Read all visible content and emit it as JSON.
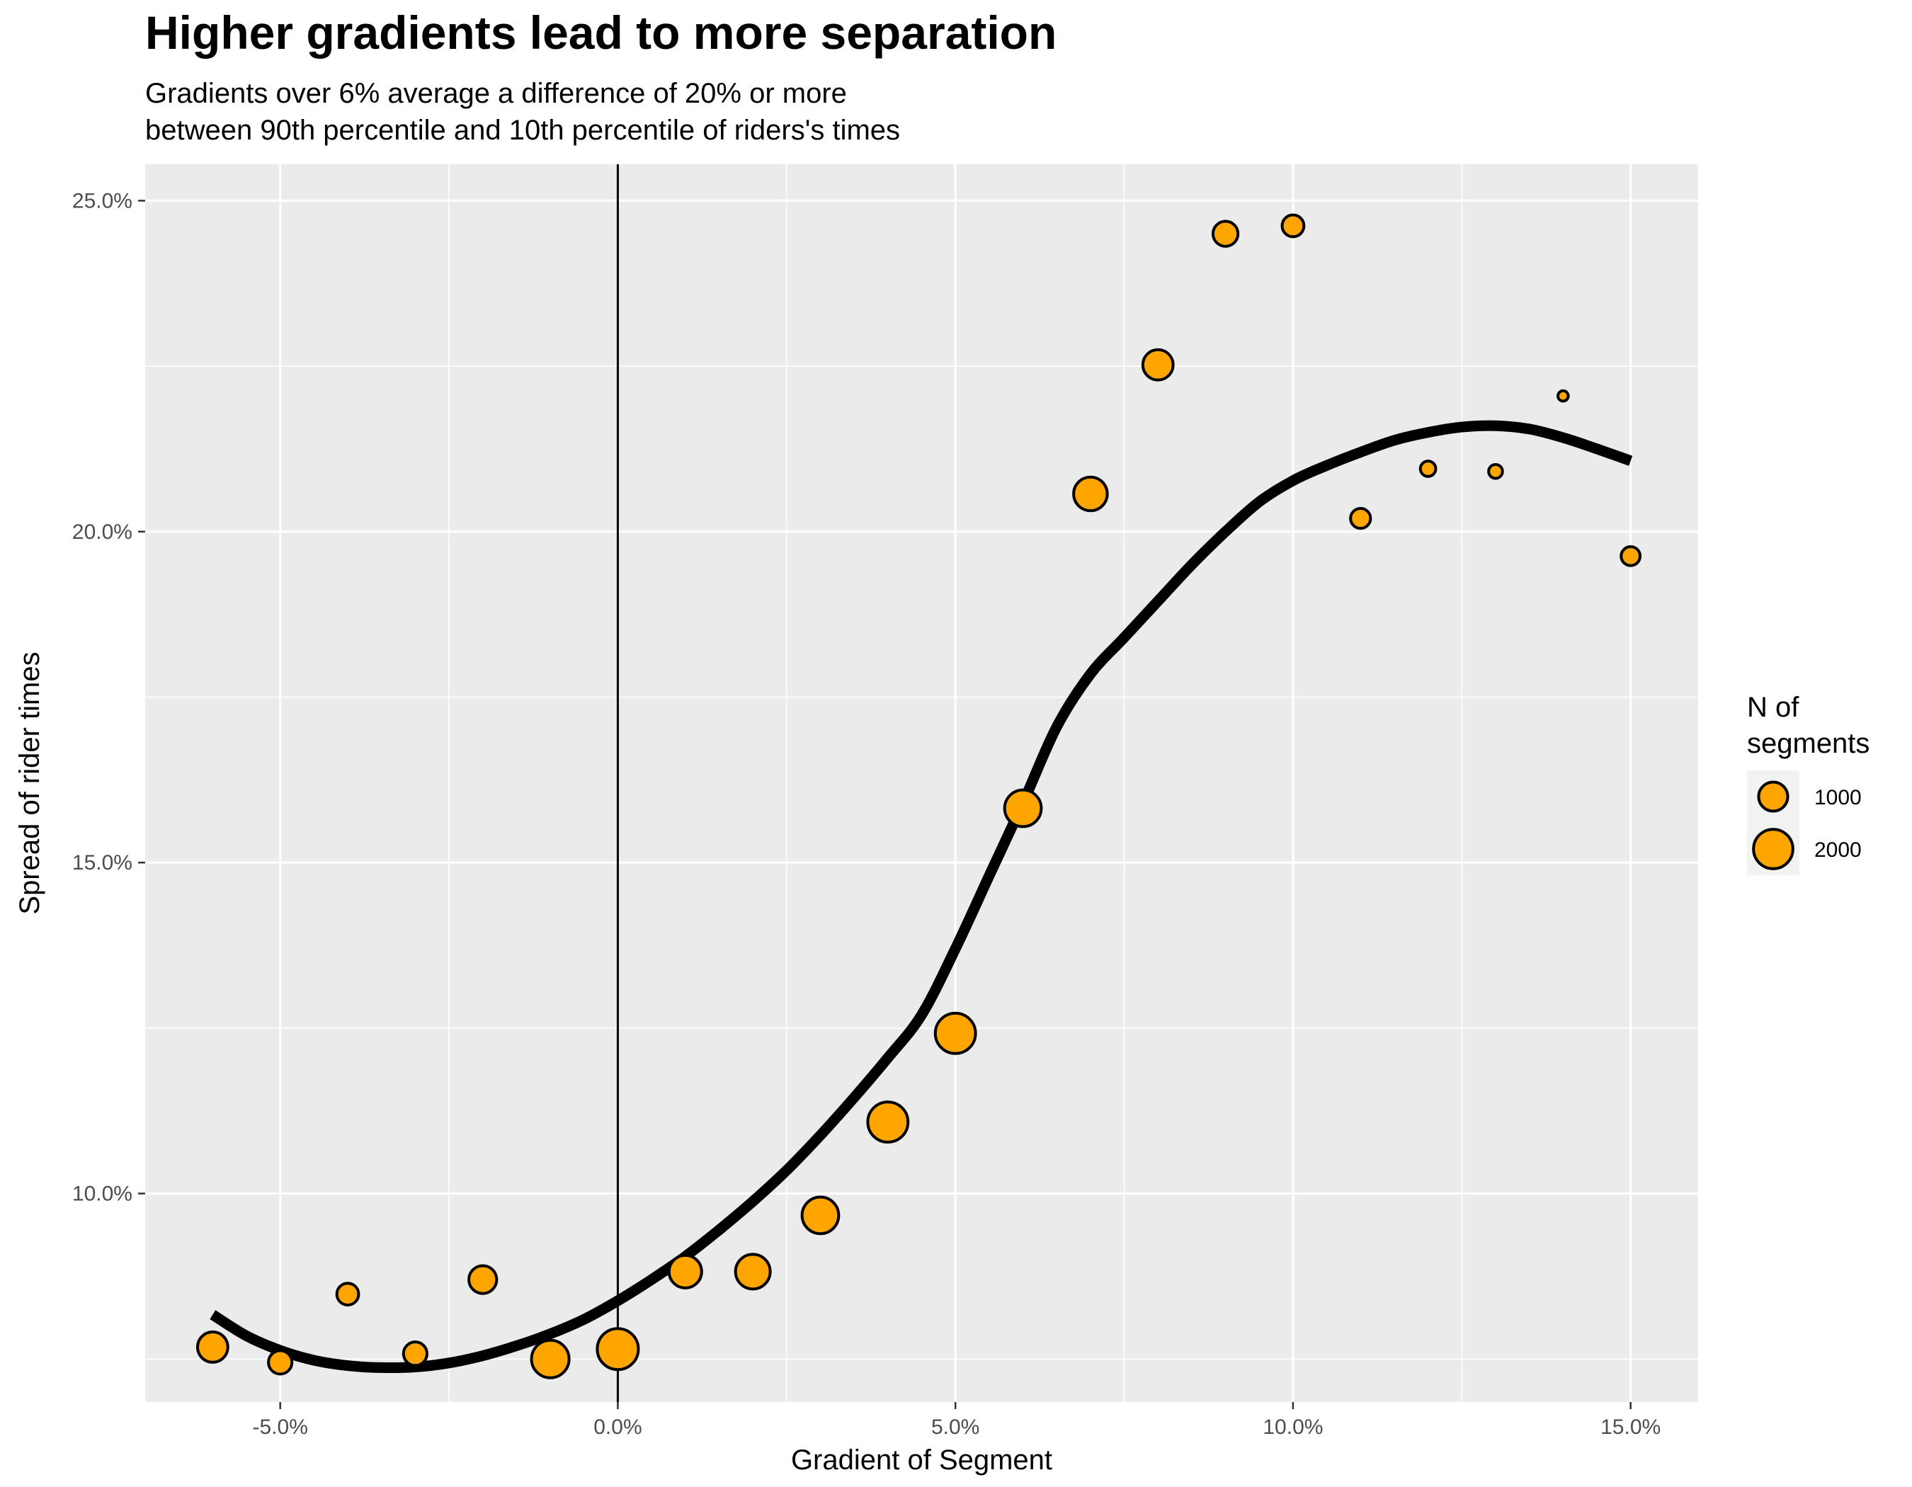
{
  "chart_data": {
    "type": "scatter",
    "title": "Higher gradients lead to more separation",
    "subtitle_lines": [
      "Gradients over 6% average a difference of 20% or more",
      "between 90th percentile and 10th percentile of riders's times"
    ],
    "xlabel": "Gradient of Segment",
    "ylabel": "Spread of rider times",
    "xlim": [
      -0.07,
      0.16
    ],
    "ylim": [
      0.0685,
      0.2555
    ],
    "x_ticks": [
      -0.05,
      0.0,
      0.05,
      0.1,
      0.15
    ],
    "x_tick_labels": [
      "-5.0%",
      "0.0%",
      "5.0%",
      "10.0%",
      "15.0%"
    ],
    "y_ticks": [
      0.1,
      0.15,
      0.2,
      0.25
    ],
    "y_tick_labels": [
      "10.0%",
      "15.0%",
      "20.0%",
      "25.0%"
    ],
    "grid": true,
    "vline_x": 0,
    "point_color": "#FFA500",
    "point_stroke": "#000000",
    "series": [
      {
        "points": [
          {
            "x": -0.06,
            "y": 0.0768,
            "n": 1100
          },
          {
            "x": -0.05,
            "y": 0.0745,
            "n": 600
          },
          {
            "x": -0.04,
            "y": 0.0848,
            "n": 500
          },
          {
            "x": -0.03,
            "y": 0.0758,
            "n": 600
          },
          {
            "x": -0.02,
            "y": 0.087,
            "n": 900
          },
          {
            "x": -0.01,
            "y": 0.075,
            "n": 1800
          },
          {
            "x": 0.0,
            "y": 0.0765,
            "n": 2200
          },
          {
            "x": 0.01,
            "y": 0.0882,
            "n": 1300
          },
          {
            "x": 0.02,
            "y": 0.0882,
            "n": 1500
          },
          {
            "x": 0.03,
            "y": 0.0967,
            "n": 1700
          },
          {
            "x": 0.04,
            "y": 0.1108,
            "n": 2100
          },
          {
            "x": 0.05,
            "y": 0.1242,
            "n": 2100
          },
          {
            "x": 0.06,
            "y": 0.1582,
            "n": 1700
          },
          {
            "x": 0.07,
            "y": 0.2057,
            "n": 1400
          },
          {
            "x": 0.08,
            "y": 0.2252,
            "n": 1100
          },
          {
            "x": 0.09,
            "y": 0.245,
            "n": 700
          },
          {
            "x": 0.1,
            "y": 0.2462,
            "n": 500
          },
          {
            "x": 0.11,
            "y": 0.202,
            "n": 400
          },
          {
            "x": 0.12,
            "y": 0.2095,
            "n": 200
          },
          {
            "x": 0.13,
            "y": 0.2091,
            "n": 150
          },
          {
            "x": 0.14,
            "y": 0.2205,
            "n": 60
          },
          {
            "x": 0.15,
            "y": 0.1963,
            "n": 350
          }
        ]
      }
    ],
    "smooth_line": [
      [
        -0.06,
        0.0817
      ],
      [
        -0.055,
        0.0785
      ],
      [
        -0.05,
        0.0763
      ],
      [
        -0.045,
        0.0748
      ],
      [
        -0.04,
        0.074
      ],
      [
        -0.035,
        0.0737
      ],
      [
        -0.03,
        0.0738
      ],
      [
        -0.025,
        0.0744
      ],
      [
        -0.02,
        0.0755
      ],
      [
        -0.015,
        0.077
      ],
      [
        -0.01,
        0.0788
      ],
      [
        -0.005,
        0.081
      ],
      [
        0.0,
        0.0838
      ],
      [
        0.005,
        0.087
      ],
      [
        0.01,
        0.0905
      ],
      [
        0.015,
        0.0945
      ],
      [
        0.02,
        0.0988
      ],
      [
        0.025,
        0.1035
      ],
      [
        0.03,
        0.1088
      ],
      [
        0.035,
        0.1145
      ],
      [
        0.04,
        0.1205
      ],
      [
        0.045,
        0.127
      ],
      [
        0.05,
        0.137
      ],
      [
        0.055,
        0.148
      ],
      [
        0.06,
        0.159
      ],
      [
        0.065,
        0.1705
      ],
      [
        0.07,
        0.1785
      ],
      [
        0.075,
        0.184
      ],
      [
        0.08,
        0.1895
      ],
      [
        0.085,
        0.195
      ],
      [
        0.09,
        0.2
      ],
      [
        0.095,
        0.2045
      ],
      [
        0.1,
        0.2077
      ],
      [
        0.105,
        0.21
      ],
      [
        0.11,
        0.212
      ],
      [
        0.115,
        0.2138
      ],
      [
        0.12,
        0.215
      ],
      [
        0.125,
        0.2158
      ],
      [
        0.13,
        0.216
      ],
      [
        0.135,
        0.2155
      ],
      [
        0.14,
        0.2142
      ],
      [
        0.145,
        0.2125
      ],
      [
        0.15,
        0.2107
      ]
    ],
    "legend": {
      "title_lines": [
        "N of",
        "segments"
      ],
      "entries": [
        {
          "label": "1000",
          "n": 1000
        },
        {
          "label": "2000",
          "n": 2000
        }
      ],
      "position": "right"
    }
  }
}
